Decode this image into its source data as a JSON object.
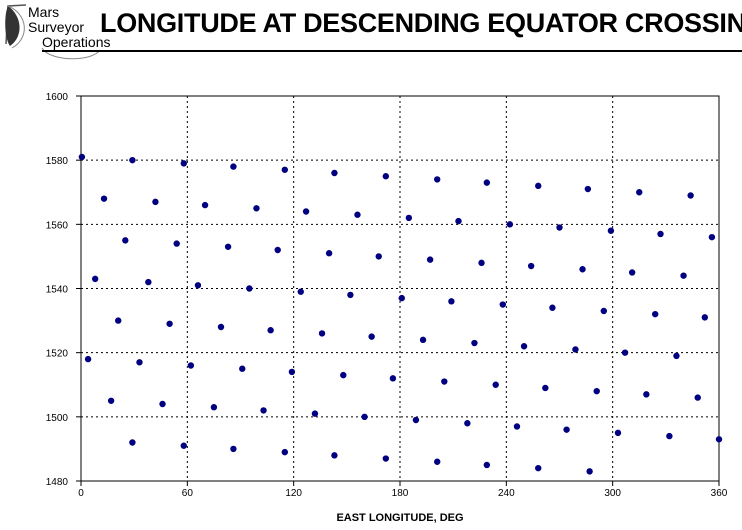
{
  "header": {
    "title": "LONGITUDE AT DESCENDING EQUATOR CROSSING",
    "logo_line1": "Mars",
    "logo_line2": "Surveyor",
    "logo_line3": "Operations"
  },
  "chart_data": {
    "type": "scatter",
    "title": "LONGITUDE AT DESCENDING EQUATOR CROSSING",
    "xlabel": "EAST LONGITUDE, DEG",
    "ylabel": "",
    "xlim": [
      0,
      360
    ],
    "ylim": [
      1480,
      1600
    ],
    "xticks": [
      0,
      60,
      120,
      180,
      240,
      300,
      360
    ],
    "yticks": [
      1480,
      1500,
      1520,
      1540,
      1560,
      1580,
      1600
    ],
    "grid": true,
    "marker_color": "#000080",
    "points": [
      [
        0.5,
        1581
      ],
      [
        29,
        1580
      ],
      [
        58,
        1579
      ],
      [
        86,
        1578
      ],
      [
        115,
        1577
      ],
      [
        143,
        1576
      ],
      [
        172,
        1575
      ],
      [
        201,
        1574
      ],
      [
        229,
        1573
      ],
      [
        258,
        1572
      ],
      [
        286,
        1571
      ],
      [
        315,
        1570
      ],
      [
        344,
        1569
      ],
      [
        13,
        1568
      ],
      [
        42,
        1567
      ],
      [
        70,
        1566
      ],
      [
        99,
        1565
      ],
      [
        127,
        1564
      ],
      [
        156,
        1563
      ],
      [
        185,
        1562
      ],
      [
        213,
        1561
      ],
      [
        242,
        1560
      ],
      [
        270,
        1559
      ],
      [
        299,
        1558
      ],
      [
        327,
        1557
      ],
      [
        356,
        1556
      ],
      [
        25,
        1555
      ],
      [
        54,
        1554
      ],
      [
        83,
        1553
      ],
      [
        111,
        1552
      ],
      [
        140,
        1551
      ],
      [
        168,
        1550
      ],
      [
        197,
        1549
      ],
      [
        226,
        1548
      ],
      [
        254,
        1547
      ],
      [
        283,
        1546
      ],
      [
        311,
        1545
      ],
      [
        340,
        1544
      ],
      [
        8,
        1543
      ],
      [
        38,
        1542
      ],
      [
        66,
        1541
      ],
      [
        95,
        1540
      ],
      [
        124,
        1539
      ],
      [
        152,
        1538
      ],
      [
        181,
        1537
      ],
      [
        209,
        1536
      ],
      [
        238,
        1535
      ],
      [
        266,
        1534
      ],
      [
        295,
        1533
      ],
      [
        324,
        1532
      ],
      [
        352,
        1531
      ],
      [
        21,
        1530
      ],
      [
        50,
        1529
      ],
      [
        79,
        1528
      ],
      [
        107,
        1527
      ],
      [
        136,
        1526
      ],
      [
        164,
        1525
      ],
      [
        193,
        1524
      ],
      [
        222,
        1523
      ],
      [
        250,
        1522
      ],
      [
        279,
        1521
      ],
      [
        307,
        1520
      ],
      [
        336,
        1519
      ],
      [
        4,
        1518
      ],
      [
        33,
        1517
      ],
      [
        62,
        1516
      ],
      [
        91,
        1515
      ],
      [
        119,
        1514
      ],
      [
        148,
        1513
      ],
      [
        176,
        1512
      ],
      [
        205,
        1511
      ],
      [
        234,
        1510
      ],
      [
        262,
        1509
      ],
      [
        291,
        1508
      ],
      [
        319,
        1507
      ],
      [
        348,
        1506
      ],
      [
        17,
        1505
      ],
      [
        46,
        1504
      ],
      [
        75,
        1503
      ],
      [
        103,
        1502
      ],
      [
        132,
        1501
      ],
      [
        160,
        1500
      ],
      [
        189,
        1499
      ],
      [
        218,
        1498
      ],
      [
        246,
        1497
      ],
      [
        274,
        1496
      ],
      [
        303,
        1495
      ],
      [
        332,
        1494
      ],
      [
        360,
        1493
      ],
      [
        29,
        1492
      ],
      [
        58,
        1491
      ],
      [
        86,
        1490
      ],
      [
        115,
        1489
      ],
      [
        143,
        1488
      ],
      [
        172,
        1487
      ],
      [
        201,
        1486
      ],
      [
        229,
        1485
      ],
      [
        258,
        1484
      ],
      [
        287,
        1483
      ]
    ]
  }
}
